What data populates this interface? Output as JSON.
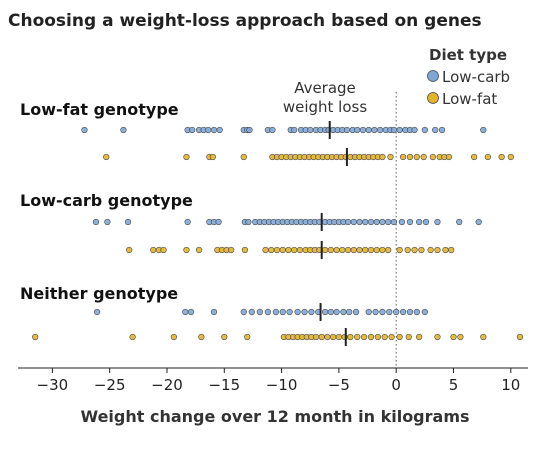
{
  "chart_data": {
    "type": "scatter",
    "title": "Choosing a weight-loss approach based on genes",
    "xlabel": "Weight change over 12 month in kilograms",
    "xlim": [
      -33,
      11.5
    ],
    "xticks": [
      -30,
      -25,
      -20,
      -15,
      -10,
      -5,
      0,
      5,
      10
    ],
    "xtick_labels": [
      "−30",
      "−25",
      "−20",
      "−15",
      "−10",
      "−5",
      "0",
      "5",
      "10"
    ],
    "reference_line_x": 0,
    "annotation": {
      "line1": "Average",
      "line2": "weight loss"
    },
    "legend": {
      "title": "Diet type",
      "placement": "top-right",
      "items": [
        {
          "name": "Low-carb",
          "color": "#7fa7d6"
        },
        {
          "name": "Low-fat",
          "color": "#e2b32f"
        }
      ]
    },
    "colors": {
      "low_carb": "#7fa7d6",
      "low_fat": "#e2b32f",
      "marker_edge": "#4a4a4a"
    },
    "groups": [
      {
        "label": "Low-fat genotype",
        "series": [
          {
            "diet": "Low-carb",
            "mean": -5.8,
            "x": [
              -27.2,
              -23.8,
              -18.2,
              -17.8,
              -17.2,
              -16.8,
              -16.4,
              -15.9,
              -15.4,
              -13.3,
              -13.0,
              -12.8,
              -11.2,
              -10.8,
              -9.2,
              -8.9,
              -8.3,
              -7.9,
              -7.5,
              -7.0,
              -6.6,
              -6.2,
              -5.9,
              -5.5,
              -5.1,
              -4.7,
              -4.3,
              -3.8,
              -3.4,
              -2.9,
              -2.4,
              -1.9,
              -1.4,
              -0.9,
              -0.5,
              -0.2,
              0.3,
              0.8,
              1.2,
              1.6,
              2.5,
              3.4,
              4.0,
              7.6
            ]
          },
          {
            "diet": "Low-fat",
            "mean": -4.3,
            "x": [
              -25.3,
              -18.3,
              -16.3,
              -16.0,
              -13.3,
              -10.8,
              -10.4,
              -10.0,
              -9.6,
              -9.2,
              -8.8,
              -8.4,
              -8.0,
              -7.6,
              -7.2,
              -6.8,
              -6.4,
              -6.0,
              -5.6,
              -5.2,
              -4.8,
              -4.4,
              -4.0,
              -3.6,
              -3.2,
              -2.8,
              -2.4,
              -2.0,
              -1.6,
              -1.2,
              -0.5,
              0.6,
              1.2,
              1.8,
              2.4,
              3.2,
              3.8,
              4.2,
              4.6,
              6.8,
              8.0,
              9.2,
              10.0
            ]
          }
        ]
      },
      {
        "label": "Low-carb genotype",
        "series": [
          {
            "diet": "Low-carb",
            "mean": -6.5,
            "x": [
              -26.2,
              -25.2,
              -23.4,
              -18.2,
              -16.3,
              -15.9,
              -15.5,
              -13.2,
              -12.9,
              -12.3,
              -11.9,
              -11.5,
              -11.1,
              -10.7,
              -10.3,
              -9.9,
              -9.5,
              -9.1,
              -8.7,
              -8.3,
              -7.9,
              -7.5,
              -7.1,
              -6.7,
              -6.2,
              -5.8,
              -5.4,
              -5.0,
              -4.6,
              -4.2,
              -3.7,
              -3.2,
              -2.7,
              -2.2,
              -1.7,
              -1.2,
              -0.7,
              -0.2,
              0.5,
              1.2,
              2.0,
              2.6,
              3.6,
              5.5,
              7.2
            ]
          },
          {
            "diet": "Low-fat",
            "mean": -6.5,
            "x": [
              -23.3,
              -21.2,
              -20.7,
              -20.3,
              -18.3,
              -17.2,
              -15.6,
              -15.2,
              -14.8,
              -14.4,
              -13.2,
              -11.4,
              -10.9,
              -10.4,
              -9.9,
              -9.4,
              -8.9,
              -8.4,
              -7.9,
              -7.5,
              -7.1,
              -6.7,
              -6.2,
              -5.7,
              -5.2,
              -4.7,
              -4.2,
              -3.7,
              -3.2,
              -2.7,
              -2.2,
              -1.7,
              -1.2,
              -0.7,
              0.3,
              1.0,
              1.6,
              2.2,
              3.0,
              3.6,
              4.3,
              4.8
            ]
          }
        ]
      },
      {
        "label": "Neither genotype",
        "series": [
          {
            "diet": "Low-carb",
            "mean": -6.6,
            "x": [
              -26.1,
              -18.4,
              -17.9,
              -15.9,
              -13.3,
              -12.6,
              -11.9,
              -11.2,
              -10.5,
              -9.9,
              -9.3,
              -8.6,
              -8.0,
              -7.4,
              -6.8,
              -6.2,
              -5.7,
              -5.2,
              -4.6,
              -4.1,
              -3.5,
              -2.4,
              -1.8,
              -1.2,
              -0.6,
              0.0,
              0.6,
              1.2,
              1.8,
              2.5
            ]
          },
          {
            "diet": "Low-fat",
            "mean": -4.4,
            "x": [
              -31.5,
              -23.0,
              -19.4,
              -17.0,
              -15.0,
              -13.0,
              -9.8,
              -9.4,
              -9.0,
              -8.6,
              -8.2,
              -7.8,
              -7.4,
              -7.0,
              -6.5,
              -6.0,
              -5.5,
              -5.0,
              -4.5,
              -4.0,
              -3.4,
              -2.8,
              -2.2,
              -1.6,
              -1.0,
              -0.4,
              0.3,
              1.1,
              2.0,
              3.6,
              5.0,
              5.6,
              7.6,
              10.8
            ]
          }
        ]
      }
    ]
  }
}
